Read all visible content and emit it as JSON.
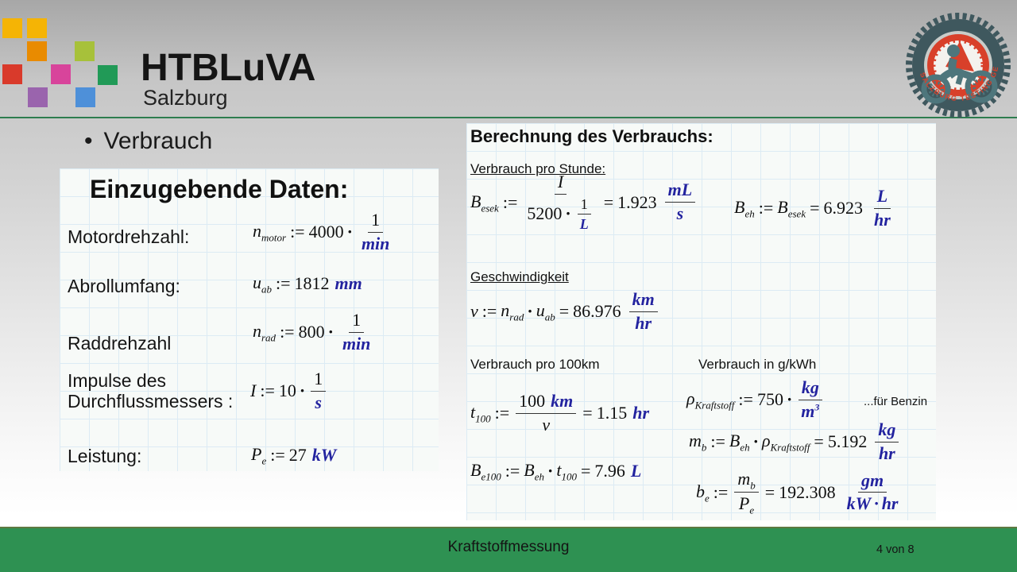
{
  "slide": {
    "header": {
      "logo_text": "HTBLuVA",
      "logo_subtext": "Salzburg",
      "logo_squares": [
        "#f5b405",
        "#f5b405",
        "#e98b00",
        "#a7c13a",
        "#d93a2b",
        "#d8449b",
        "#219a57",
        "#9a64ad",
        "#4e90d9"
      ],
      "badge_text": "HTL SALZBURG TESTING GEAR"
    },
    "bullet": {
      "marker": "•",
      "label": "Verbrauch"
    },
    "colors": {
      "footer_green": "#2e9152",
      "divider_green": "#2e7d4f",
      "math_blue": "#23239f",
      "badge_red": "#d8402a",
      "badge_dark": "#3f585e",
      "badge_teal": "#4e767c",
      "grid_line": "#dcebf4",
      "panel_bg": "#f7faf8"
    },
    "left_panel": {
      "heading": "Einzugebende Daten:",
      "rows": [
        {
          "label": "Motordrehzahl:",
          "formula": [
            [
              "v",
              "n",
              "motor"
            ],
            [
              "o",
              ":="
            ],
            [
              "n",
              "4000"
            ],
            [
              "d"
            ],
            [
              "f",
              [
                [
                  "n",
                  "1"
                ]
              ],
              [
                [
                  "u",
                  "min"
                ]
              ]
            ]
          ]
        },
        {
          "label": "Abrollumfang:",
          "formula": [
            [
              "v",
              "u",
              "ab"
            ],
            [
              "o",
              ":="
            ],
            [
              "n",
              "1812"
            ],
            [
              "sp"
            ],
            [
              "u",
              "mm"
            ]
          ]
        },
        {
          "label": "Raddrehzahl",
          "formula": [
            [
              "v",
              "n",
              "rad"
            ],
            [
              "o",
              ":="
            ],
            [
              "n",
              "800"
            ],
            [
              "d"
            ],
            [
              "f",
              [
                [
                  "n",
                  "1"
                ]
              ],
              [
                [
                  "u",
                  "min"
                ]
              ]
            ]
          ]
        },
        {
          "label": "Impulse des\nDurchflussmessers :",
          "formula": [
            [
              "v",
              "I"
            ],
            [
              "o",
              ":="
            ],
            [
              "n",
              "10"
            ],
            [
              "d"
            ],
            [
              "f",
              [
                [
                  "n",
                  "1"
                ]
              ],
              [
                [
                  "u",
                  "s"
                ]
              ]
            ]
          ]
        },
        {
          "label": "Leistung:",
          "formula": [
            [
              "v",
              "P",
              "e"
            ],
            [
              "o",
              ":="
            ],
            [
              "n",
              "27"
            ],
            [
              "sp"
            ],
            [
              "u",
              "kW"
            ]
          ]
        }
      ]
    },
    "right_panel": {
      "heading": "Berechnung des Verbrauchs:",
      "section1": "Verbrauch pro Stunde:",
      "section2": "Geschwindigkeit",
      "section3_left": "Verbrauch pro 100km",
      "section3_right": "Verbrauch in g/kWh",
      "annotation": "...für Benzin",
      "f_besek": [
        [
          "v",
          "B",
          "esek"
        ],
        [
          "o",
          ":="
        ],
        [
          "f",
          [
            [
              "v",
              "I"
            ]
          ],
          [
            [
              "n",
              "5200"
            ],
            [
              "d"
            ],
            [
              "f",
              [
                [
                  "n",
                  "1"
                ]
              ],
              [
                [
                  "u",
                  "L"
                ]
              ]
            ]
          ]
        ],
        [
          "o",
          "="
        ],
        [
          "n",
          "1.923"
        ],
        [
          "sp"
        ],
        [
          "f",
          [
            [
              "u",
              "mL"
            ]
          ],
          [
            [
              "u",
              "s"
            ]
          ]
        ]
      ],
      "f_beh": [
        [
          "v",
          "B",
          "eh"
        ],
        [
          "o",
          ":="
        ],
        [
          "v",
          "B",
          "esek"
        ],
        [
          "o",
          "="
        ],
        [
          "n",
          "6.923"
        ],
        [
          "sp"
        ],
        [
          "f",
          [
            [
              "u",
              "L"
            ]
          ],
          [
            [
              "u",
              "hr"
            ]
          ]
        ]
      ],
      "f_v": [
        [
          "v",
          "v"
        ],
        [
          "o",
          ":="
        ],
        [
          "v",
          "n",
          "rad"
        ],
        [
          "d"
        ],
        [
          "v",
          "u",
          "ab"
        ],
        [
          "o",
          "="
        ],
        [
          "n",
          "86.976"
        ],
        [
          "sp"
        ],
        [
          "f",
          [
            [
              "u",
              "km"
            ]
          ],
          [
            [
              "u",
              "hr"
            ]
          ]
        ]
      ],
      "f_t100": [
        [
          "v",
          "t",
          "100"
        ],
        [
          "o",
          ":="
        ],
        [
          "f",
          [
            [
              "n",
              "100"
            ],
            [
              "sp"
            ],
            [
              "u",
              "km"
            ]
          ],
          [
            [
              "v",
              "v"
            ]
          ]
        ],
        [
          "o",
          "="
        ],
        [
          "n",
          "1.15"
        ],
        [
          "sp"
        ],
        [
          "u",
          "hr"
        ]
      ],
      "f_be100": [
        [
          "v",
          "B",
          "e100"
        ],
        [
          "o",
          ":="
        ],
        [
          "v",
          "B",
          "eh"
        ],
        [
          "d"
        ],
        [
          "v",
          "t",
          "100"
        ],
        [
          "o",
          "="
        ],
        [
          "n",
          "7.96"
        ],
        [
          "sp"
        ],
        [
          "u",
          "L"
        ]
      ],
      "f_rho": [
        [
          "v",
          "ρ",
          "Kraftstoff"
        ],
        [
          "o",
          ":="
        ],
        [
          "n",
          "750"
        ],
        [
          "d"
        ],
        [
          "f",
          [
            [
              "u",
              "kg"
            ]
          ],
          [
            [
              "us",
              "m",
              "3"
            ]
          ]
        ]
      ],
      "f_mb": [
        [
          "v",
          "m",
          "b"
        ],
        [
          "o",
          ":="
        ],
        [
          "v",
          "B",
          "eh"
        ],
        [
          "d"
        ],
        [
          "v",
          "ρ",
          "Kraftstoff"
        ],
        [
          "o",
          "="
        ],
        [
          "n",
          "5.192"
        ],
        [
          "sp"
        ],
        [
          "f",
          [
            [
              "u",
              "kg"
            ]
          ],
          [
            [
              "u",
              "hr"
            ]
          ]
        ]
      ],
      "f_be": [
        [
          "v",
          "b",
          "e"
        ],
        [
          "o",
          ":="
        ],
        [
          "f",
          [
            [
              "v",
              "m",
              "b"
            ]
          ],
          [
            [
              "v",
              "P",
              "e"
            ]
          ]
        ],
        [
          "o",
          "="
        ],
        [
          "n",
          "192.308"
        ],
        [
          "sp"
        ],
        [
          "f",
          [
            [
              "u",
              "gm"
            ]
          ],
          [
            [
              "u",
              "kW"
            ],
            [
              "d",
              "u"
            ],
            [
              "u",
              "hr"
            ]
          ]
        ]
      ]
    },
    "footer": {
      "title": "Kraftstoffmessung",
      "page": "4 von 8"
    }
  }
}
